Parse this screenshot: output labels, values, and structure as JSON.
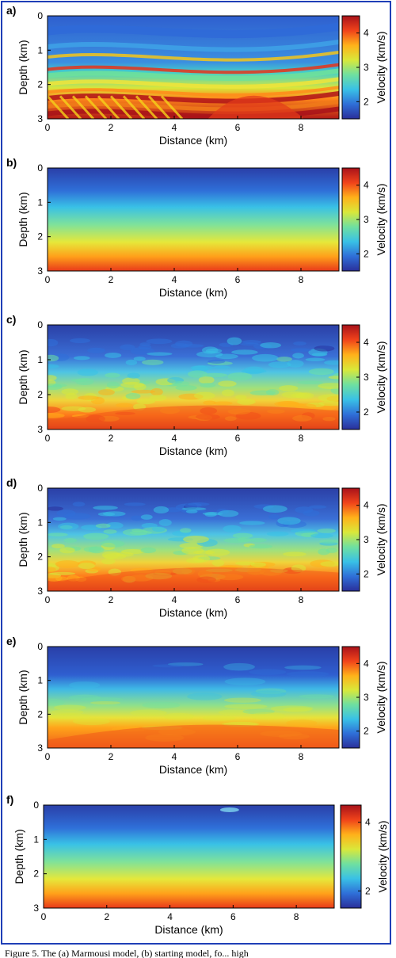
{
  "caption": "Figure 5. The (a) Marmousi model, (b) starting model, fo... high",
  "colorscale": [
    "#2a2f9a",
    "#2f6fd8",
    "#39c1e6",
    "#6fe0a0",
    "#d9e83a",
    "#ffb11a",
    "#f0431a",
    "#a8121a"
  ],
  "panels": [
    {
      "label": "a)",
      "description": "true Marmousi velocity model",
      "chart_data": {
        "type": "heatmap",
        "xlabel": "Distance (km)",
        "ylabel": "Depth (km)",
        "colorbar_label": "Velocity (km/s)",
        "xlim": [
          0,
          9.2
        ],
        "ylim": [
          0,
          3
        ],
        "clim": [
          1.5,
          4.5
        ],
        "xticks": [
          "0",
          "2",
          "4",
          "6",
          "8"
        ],
        "yticks": [
          "0",
          "1",
          "2",
          "3"
        ],
        "cticks": [
          "2",
          "3",
          "4"
        ],
        "colorbar_tick_values": [
          2,
          3,
          4
        ]
      }
    },
    {
      "label": "b)",
      "description": "starting velocity model",
      "chart_data": {
        "type": "heatmap",
        "xlabel": "Distance (km)",
        "ylabel": "Depth (km)",
        "colorbar_label": "Velocity (km/s)",
        "xlim": [
          0,
          9.2
        ],
        "ylim": [
          0,
          3
        ],
        "clim": [
          1.5,
          4.5
        ],
        "xticks": [
          "0",
          "2",
          "4",
          "6",
          "8"
        ],
        "yticks": [
          "0",
          "1",
          "2",
          "3"
        ],
        "cticks": [
          "2",
          "3",
          "4"
        ],
        "colorbar_tick_values": [
          2,
          3,
          4
        ]
      }
    },
    {
      "label": "c)",
      "description": "inverted model",
      "chart_data": {
        "type": "heatmap",
        "xlabel": "Distance (km)",
        "ylabel": "Depth (km)",
        "colorbar_label": "Velocity (km/s)",
        "xlim": [
          0,
          9.2
        ],
        "ylim": [
          0,
          3
        ],
        "clim": [
          1.5,
          4.5
        ],
        "xticks": [
          "0",
          "2",
          "4",
          "6",
          "8"
        ],
        "yticks": [
          "0",
          "1",
          "2",
          "3"
        ],
        "cticks": [
          "2",
          "3",
          "4"
        ],
        "colorbar_tick_values": [
          2,
          3,
          4
        ]
      }
    },
    {
      "label": "d)",
      "description": "inverted model",
      "chart_data": {
        "type": "heatmap",
        "xlabel": "Distance (km)",
        "ylabel": "Depth (km)",
        "colorbar_label": "Velocity (km/s)",
        "xlim": [
          0,
          9.2
        ],
        "ylim": [
          0,
          3
        ],
        "clim": [
          1.5,
          4.5
        ],
        "xticks": [
          "0",
          "2",
          "4",
          "6",
          "8"
        ],
        "yticks": [
          "0",
          "1",
          "2",
          "3"
        ],
        "cticks": [
          "2",
          "3",
          "4"
        ],
        "colorbar_tick_values": [
          2,
          3,
          4
        ]
      }
    },
    {
      "label": "e)",
      "description": "smoothed inverted model",
      "chart_data": {
        "type": "heatmap",
        "xlabel": "Distance (km)",
        "ylabel": "Depth (km)",
        "colorbar_label": "Velocity (km/s)",
        "xlim": [
          0,
          9.2
        ],
        "ylim": [
          0,
          3
        ],
        "clim": [
          1.5,
          4.5
        ],
        "xticks": [
          "0",
          "2",
          "4",
          "6",
          "8"
        ],
        "yticks": [
          "0",
          "1",
          "2",
          "3"
        ],
        "cticks": [
          "2",
          "3",
          "4"
        ],
        "colorbar_tick_values": [
          2,
          3,
          4
        ]
      }
    },
    {
      "label": "f)",
      "description": "nearly laterally-invariant gradient model",
      "chart_data": {
        "type": "heatmap",
        "xlabel": "Distance (km)",
        "ylabel": "Depth (km)",
        "colorbar_label": "Velocity (km/s)",
        "xlim": [
          0,
          9.2
        ],
        "ylim": [
          0,
          3
        ],
        "clim": [
          1.5,
          4.5
        ],
        "xticks": [
          "0",
          "2",
          "4",
          "6",
          "8"
        ],
        "yticks": [
          "0",
          "1",
          "2",
          "3"
        ],
        "cticks": [
          "2",
          "4"
        ],
        "colorbar_tick_values": [
          2,
          4
        ]
      }
    }
  ]
}
